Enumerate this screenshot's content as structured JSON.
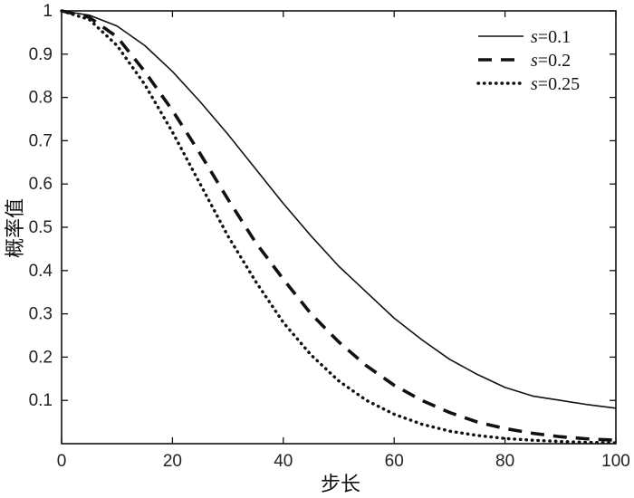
{
  "chart_data": {
    "type": "line",
    "title": "",
    "xlabel": "步长",
    "ylabel": "概率值",
    "xlim": [
      0,
      100
    ],
    "ylim": [
      0,
      1
    ],
    "xticks": [
      0,
      20,
      40,
      60,
      80,
      100
    ],
    "yticks": [
      0.1,
      0.2,
      0.3,
      0.4,
      0.5,
      0.6,
      0.7,
      0.8,
      0.9,
      1
    ],
    "grid": false,
    "legend_position": "top-right",
    "x": [
      0,
      5,
      10,
      15,
      20,
      25,
      30,
      35,
      40,
      45,
      50,
      55,
      60,
      65,
      70,
      75,
      80,
      85,
      90,
      95,
      100
    ],
    "series": [
      {
        "name": "s=0.1",
        "legend_prefix": "s",
        "legend_suffix": "=0.1",
        "line_style": "solid",
        "values": [
          1.0,
          0.99,
          0.965,
          0.92,
          0.86,
          0.79,
          0.715,
          0.635,
          0.555,
          0.48,
          0.41,
          0.35,
          0.29,
          0.24,
          0.195,
          0.16,
          0.13,
          0.11,
          0.1,
          0.09,
          0.082
        ]
      },
      {
        "name": "s=0.2",
        "legend_prefix": "s",
        "legend_suffix": "=0.2",
        "line_style": "dashed",
        "values": [
          1.0,
          0.985,
          0.94,
          0.86,
          0.77,
          0.67,
          0.565,
          0.465,
          0.38,
          0.3,
          0.235,
          0.18,
          0.135,
          0.1,
          0.072,
          0.05,
          0.035,
          0.024,
          0.016,
          0.011,
          0.008
        ]
      },
      {
        "name": "s=0.25",
        "legend_prefix": "s",
        "legend_suffix": "=0.25",
        "line_style": "dotted",
        "values": [
          1.0,
          0.98,
          0.92,
          0.83,
          0.72,
          0.6,
          0.48,
          0.375,
          0.28,
          0.205,
          0.145,
          0.1,
          0.068,
          0.045,
          0.029,
          0.019,
          0.012,
          0.008,
          0.005,
          0.003,
          0.002
        ]
      }
    ]
  }
}
